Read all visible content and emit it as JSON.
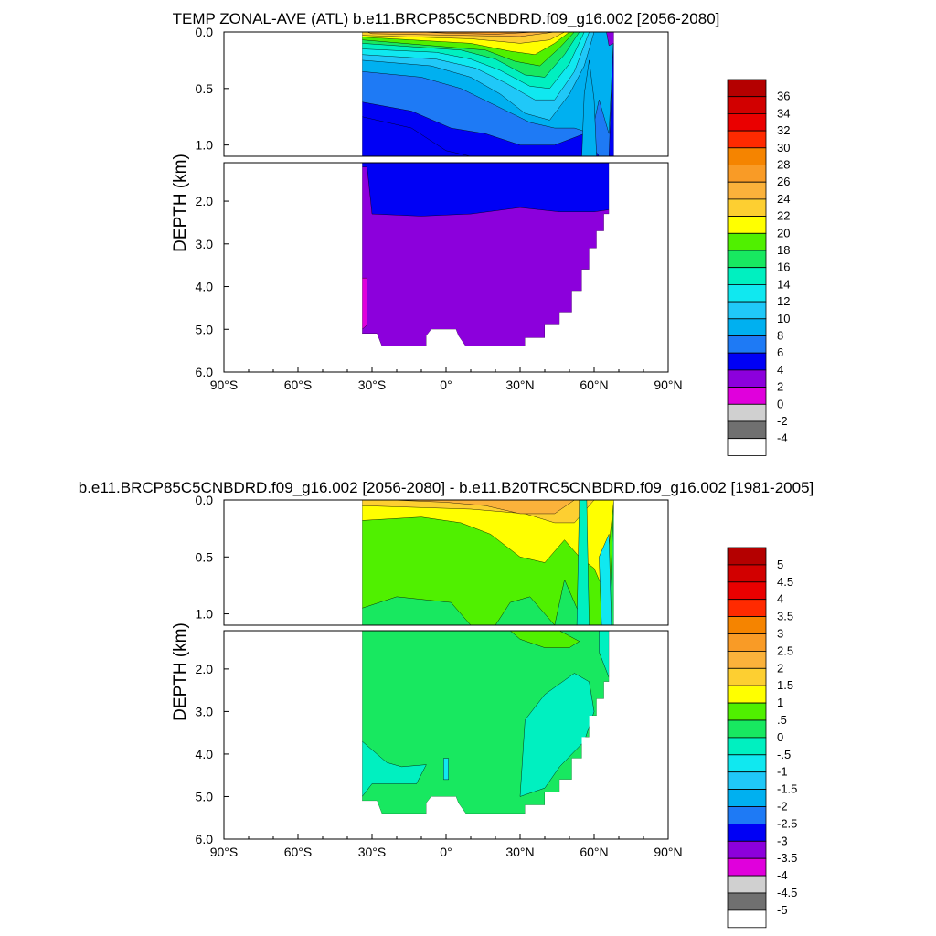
{
  "chart_data": [
    {
      "type": "heatmap",
      "title": "TEMP ZONAL-AVE (ATL) b.e11.BRCP85C5CNBDRD.f09_g16.002 [2056-2080]",
      "ylabel": "DEPTH (km)",
      "xlabel": "",
      "x_ticks": [
        "90°S",
        "60°S",
        "30°S",
        "0°",
        "30°N",
        "60°N",
        "90°N"
      ],
      "upper_y_ticks": [
        "0.0",
        "0.5",
        "1.0"
      ],
      "lower_y_ticks": [
        "2.0",
        "3.0",
        "4.0",
        "5.0",
        "6.0"
      ],
      "xlim": [
        -90,
        90
      ],
      "ylim_upper": [
        0,
        1.1
      ],
      "ylim_lower": [
        1.1,
        6.0
      ],
      "colorbar_labels": [
        "36",
        "34",
        "32",
        "30",
        "28",
        "26",
        "24",
        "22",
        "20",
        "18",
        "16",
        "14",
        "12",
        "10",
        "8",
        "6",
        "4",
        "2",
        "0",
        "-2",
        "-4"
      ],
      "colors": [
        "#b40000",
        "#d20000",
        "#ea0000",
        "#ff2a00",
        "#f58400",
        "#f99b26",
        "#fbb23b",
        "#fdcf31",
        "#ffff00",
        "#50f000",
        "#18e860",
        "#00f0c0",
        "#10e8f0",
        "#20c8f8",
        "#00b0f0",
        "#1e7af5",
        "#0000f5",
        "#8c00dc",
        "#e000dc",
        "#d0d0d0",
        "#707070",
        "#ffffff"
      ],
      "data_extent": {
        "lat_min": -34,
        "lat_max": 68,
        "bottom_depth_km": 5.4
      }
    },
    {
      "type": "heatmap",
      "title": "b.e11.BRCP85C5CNBDRD.f09_g16.002 [2056-2080] - b.e11.B20TRC5CNBDRD.f09_g16.002 [1981-2005]",
      "ylabel": "DEPTH (km)",
      "xlabel": "",
      "x_ticks": [
        "90°S",
        "60°S",
        "30°S",
        "0°",
        "30°N",
        "60°N",
        "90°N"
      ],
      "upper_y_ticks": [
        "0.0",
        "0.5",
        "1.0"
      ],
      "lower_y_ticks": [
        "2.0",
        "3.0",
        "4.0",
        "5.0",
        "6.0"
      ],
      "xlim": [
        -90,
        90
      ],
      "ylim_upper": [
        0,
        1.1
      ],
      "ylim_lower": [
        1.1,
        6.0
      ],
      "colorbar_labels": [
        "5",
        "4.5",
        "4",
        "3.5",
        "3",
        "2.5",
        "2",
        "1.5",
        "1",
        ".5",
        "0",
        "-.5",
        "-1",
        "-1.5",
        "-2",
        "-2.5",
        "-3",
        "-3.5",
        "-4",
        "-4.5",
        "-5"
      ],
      "colors": [
        "#b40000",
        "#d20000",
        "#ea0000",
        "#ff2a00",
        "#f58400",
        "#f99b26",
        "#fbb23b",
        "#fdcf31",
        "#ffff00",
        "#50f000",
        "#18e860",
        "#00f0c0",
        "#10e8f0",
        "#20c8f8",
        "#00b0f0",
        "#1e7af5",
        "#0000f5",
        "#8c00dc",
        "#e000dc",
        "#d0d0d0",
        "#707070",
        "#ffffff"
      ],
      "data_extent": {
        "lat_min": -34,
        "lat_max": 68,
        "bottom_depth_km": 5.4
      }
    }
  ]
}
